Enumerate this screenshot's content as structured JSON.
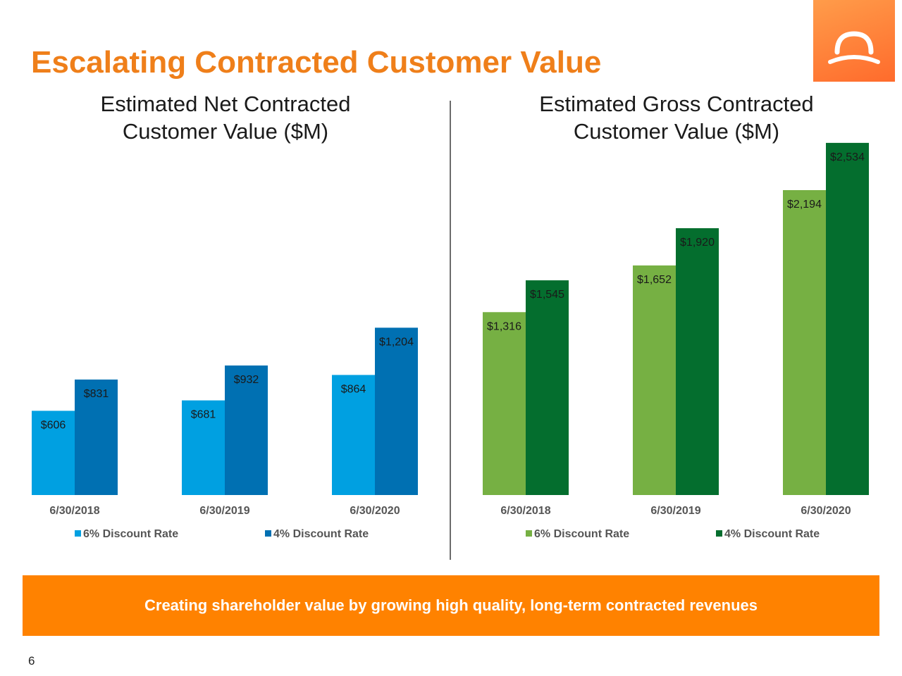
{
  "title": "Escalating Contracted Customer Value",
  "logo": {
    "name": "company-logo",
    "bg_color": "#ff7a2f"
  },
  "chart_data": [
    {
      "type": "bar",
      "title": "Estimated Net Contracted Customer Value ($M)",
      "title_lines": [
        "Estimated Net Contracted",
        "Customer Value ($M)"
      ],
      "categories": [
        "6/30/2018",
        "6/30/2019",
        "6/30/2020"
      ],
      "series": [
        {
          "name": "6% Discount Rate",
          "color": "#00a0e1",
          "values": [
            606,
            681,
            864
          ],
          "labels": [
            "$606",
            "$681",
            "$864"
          ]
        },
        {
          "name": "4% Discount Rate",
          "color": "#0070b2",
          "values": [
            831,
            932,
            1204
          ],
          "labels": [
            "$831",
            "$932",
            "$1,204"
          ]
        }
      ],
      "ylim": [
        0,
        2650
      ],
      "xlabel": "",
      "ylabel": "",
      "grid": false,
      "legend": "bottom"
    },
    {
      "type": "bar",
      "title": "Estimated Gross Contracted Customer Value ($M)",
      "title_lines": [
        "Estimated Gross Contracted",
        "Customer Value ($M)"
      ],
      "categories": [
        "6/30/2018",
        "6/30/2019",
        "6/30/2020"
      ],
      "series": [
        {
          "name": "6% Discount Rate",
          "color": "#76b043",
          "values": [
            1316,
            1652,
            2194
          ],
          "labels": [
            "$1,316",
            "$1,652",
            "$2,194"
          ]
        },
        {
          "name": "4% Discount Rate",
          "color": "#046e2e",
          "values": [
            1545,
            1920,
            2534
          ],
          "labels": [
            "$1,545",
            "$1,920",
            "$2,534"
          ]
        }
      ],
      "ylim": [
        0,
        2650
      ],
      "xlabel": "",
      "ylabel": "",
      "grid": false,
      "legend": "bottom"
    }
  ],
  "banner": "Creating shareholder value by growing high quality, long-term contracted revenues",
  "page_number": "6"
}
